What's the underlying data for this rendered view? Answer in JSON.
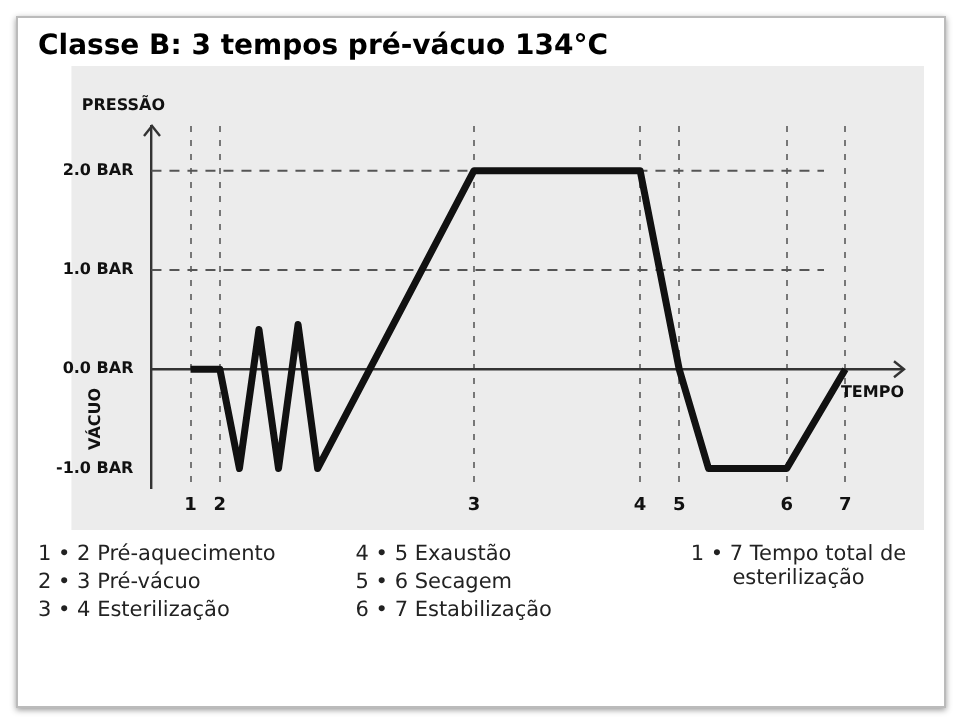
{
  "chart_data": {
    "type": "line",
    "title": "Classe B: 3 tempos pré-vácuo 134°C",
    "ylabel": "PRESSÃO",
    "xlabel": "TEMPO",
    "annotations": [
      "VÁCUO",
      "1 • 2 Pré-aquecimento",
      "2 • 3 Pré-vácuo",
      "3 • 4 Esterilização",
      "4 • 5 Exaustão",
      "5 • 6 Secagem",
      "6 • 7 Estabilização",
      "1 • 7 Tempo total de esterilização"
    ],
    "categories": [
      null,
      null,
      null,
      null,
      "1",
      null,
      null,
      "2",
      null,
      null,
      null,
      null,
      null,
      null,
      null,
      null,
      null,
      null,
      null,
      null,
      null,
      null,
      null,
      null,
      null,
      null,
      null,
      null,
      null,
      null,
      null,
      null,
      null,
      "3",
      null,
      null,
      null,
      null,
      null,
      null,
      null,
      null,
      null,
      null,
      null,
      null,
      null,
      null,
      null,
      null,
      "4",
      null,
      null,
      null,
      "5",
      null,
      null,
      null,
      null,
      null,
      null,
      null,
      null,
      null,
      null,
      "6",
      null,
      null,
      null,
      null,
      null,
      "7",
      null,
      null,
      null,
      null,
      null,
      null
    ],
    "series": [
      {
        "color": "#111111",
        "values": [
          null,
          null,
          null,
          null,
          0,
          null,
          null,
          0,
          null,
          -1,
          null,
          0.4,
          null,
          -1,
          null,
          0.45,
          null,
          -1,
          null,
          null,
          null,
          null,
          null,
          null,
          null,
          null,
          null,
          null,
          null,
          null,
          null,
          null,
          null,
          2,
          null,
          null,
          null,
          null,
          null,
          null,
          null,
          null,
          null,
          null,
          null,
          null,
          null,
          null,
          null,
          null,
          2,
          null,
          null,
          null,
          0,
          null,
          null,
          -1,
          null,
          null,
          null,
          null,
          null,
          null,
          null,
          -1,
          null,
          null,
          null,
          null,
          null,
          0,
          null,
          null,
          null,
          null,
          null,
          null
        ]
      }
    ],
    "ylim": [
      -1.2,
      2.45
    ],
    "yticks": [
      {
        "value": -1,
        "label": "-1.0 BAR"
      },
      {
        "value": 0,
        "label": "0.0 BAR"
      },
      {
        "value": 1,
        "label": "1.0 BAR"
      },
      {
        "value": 2,
        "label": "2.0 BAR"
      }
    ],
    "ref_lines": [
      {
        "axis": "y",
        "value": 2,
        "color": "#555555",
        "line_style": "dashed"
      },
      {
        "axis": "y",
        "value": 1,
        "color": "#555555",
        "line_style": "dashed"
      }
    ],
    "grid": "x",
    "legend": false,
    "line_style": "solid"
  }
}
